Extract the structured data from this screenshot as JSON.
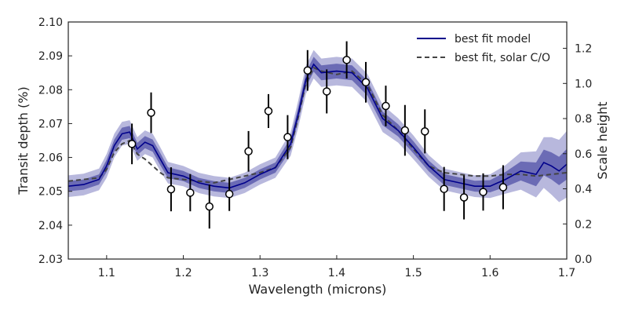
{
  "chart_data": {
    "type": "line",
    "xlabel": "Wavelength (microns)",
    "ylabel": "Transit depth (%)",
    "y2label": "Scale height",
    "xlim": [
      1.05,
      1.7
    ],
    "ylim": [
      2.03,
      2.1
    ],
    "y2lim": [
      0.0,
      1.35
    ],
    "xticks": [
      "1.1",
      "1.2",
      "1.3",
      "1.4",
      "1.5",
      "1.6",
      "1.7"
    ],
    "yticks": [
      "2.03",
      "2.04",
      "2.05",
      "2.06",
      "2.07",
      "2.08",
      "2.09",
      "2.10"
    ],
    "y2ticks": [
      "0.0",
      "0.2",
      "0.4",
      "0.6",
      "0.8",
      "1.0",
      "1.2"
    ],
    "legend_position": "top-right",
    "grid": false,
    "colors": {
      "best_fit": "#00008b",
      "solar": "#444444",
      "band_inner": "#6b6bb5",
      "band_outer": "#b8b8dd",
      "points_edge": "#000000",
      "points_face": "#ffffff"
    },
    "series": [
      {
        "name": "best fit model",
        "style": "solid",
        "x": [
          1.05,
          1.07,
          1.09,
          1.1,
          1.11,
          1.12,
          1.13,
          1.14,
          1.15,
          1.16,
          1.17,
          1.18,
          1.2,
          1.22,
          1.24,
          1.26,
          1.28,
          1.3,
          1.32,
          1.34,
          1.35,
          1.36,
          1.37,
          1.38,
          1.4,
          1.42,
          1.44,
          1.46,
          1.48,
          1.5,
          1.52,
          1.54,
          1.56,
          1.58,
          1.6,
          1.62,
          1.64,
          1.66,
          1.67,
          1.68,
          1.69,
          1.7
        ],
        "y": [
          2.0515,
          2.052,
          2.0535,
          2.0575,
          2.0635,
          2.067,
          2.0675,
          2.0625,
          2.0645,
          2.0635,
          2.0595,
          2.0555,
          2.0545,
          2.0525,
          2.0515,
          2.051,
          2.0525,
          2.055,
          2.057,
          2.064,
          2.073,
          2.083,
          2.0875,
          2.085,
          2.0855,
          2.085,
          2.0805,
          2.0715,
          2.068,
          2.063,
          2.0575,
          2.0535,
          2.0525,
          2.0515,
          2.0515,
          2.0535,
          2.056,
          2.055,
          2.0585,
          2.0575,
          2.056,
          2.058
        ]
      },
      {
        "name": "best fit, solar C/O",
        "style": "dashed",
        "x": [
          1.05,
          1.07,
          1.09,
          1.1,
          1.11,
          1.12,
          1.13,
          1.14,
          1.15,
          1.16,
          1.17,
          1.18,
          1.2,
          1.22,
          1.24,
          1.26,
          1.28,
          1.3,
          1.32,
          1.34,
          1.35,
          1.36,
          1.37,
          1.38,
          1.4,
          1.42,
          1.44,
          1.46,
          1.48,
          1.5,
          1.52,
          1.54,
          1.56,
          1.58,
          1.6,
          1.62,
          1.64,
          1.66,
          1.68,
          1.7
        ],
        "y": [
          2.053,
          2.0535,
          2.054,
          2.0565,
          2.0615,
          2.064,
          2.065,
          2.061,
          2.0595,
          2.0575,
          2.0555,
          2.054,
          2.0535,
          2.053,
          2.0525,
          2.0535,
          2.0545,
          2.0555,
          2.057,
          2.063,
          2.072,
          2.082,
          2.0865,
          2.0855,
          2.0845,
          2.0855,
          2.0815,
          2.0725,
          2.068,
          2.0625,
          2.0575,
          2.0555,
          2.055,
          2.0545,
          2.0545,
          2.055,
          2.055,
          2.0545,
          2.055,
          2.0555
        ]
      }
    ],
    "uncertainty_band": {
      "inner_halfwidth": [
        0.0015,
        0.0015,
        0.0015,
        0.0018,
        0.0018,
        0.0018,
        0.0018,
        0.0018,
        0.0018,
        0.0018,
        0.0018,
        0.0016,
        0.0015,
        0.0015,
        0.0015,
        0.0015,
        0.0015,
        0.0015,
        0.0015,
        0.0018,
        0.002,
        0.0022,
        0.0022,
        0.0022,
        0.0022,
        0.0022,
        0.0022,
        0.002,
        0.0018,
        0.0018,
        0.0016,
        0.0016,
        0.0016,
        0.0016,
        0.0018,
        0.0022,
        0.0028,
        0.0035,
        0.0038,
        0.004,
        0.0042,
        0.0045
      ],
      "outer_halfwidth": [
        0.0032,
        0.0032,
        0.0032,
        0.0035,
        0.0035,
        0.0035,
        0.0035,
        0.0035,
        0.0035,
        0.0035,
        0.0035,
        0.0032,
        0.003,
        0.003,
        0.003,
        0.003,
        0.003,
        0.003,
        0.003,
        0.0035,
        0.004,
        0.0042,
        0.0042,
        0.0042,
        0.0042,
        0.0042,
        0.0042,
        0.004,
        0.0036,
        0.0035,
        0.0032,
        0.0032,
        0.0032,
        0.0032,
        0.0035,
        0.0042,
        0.0055,
        0.0068,
        0.0075,
        0.0085,
        0.0092,
        0.0098
      ]
    },
    "data_points": {
      "x": [
        1.133,
        1.158,
        1.184,
        1.209,
        1.234,
        1.26,
        1.285,
        1.311,
        1.336,
        1.362,
        1.387,
        1.413,
        1.438,
        1.464,
        1.489,
        1.515,
        1.54,
        1.566,
        1.591,
        1.617
      ],
      "y": [
        2.064,
        2.0732,
        2.0506,
        2.0496,
        2.0455,
        2.0492,
        2.0618,
        2.0737,
        2.066,
        2.0857,
        2.0795,
        2.0888,
        2.0822,
        2.0752,
        2.068,
        2.0677,
        2.0507,
        2.0482,
        2.0498,
        2.0512
      ],
      "yerr": [
        0.006,
        0.006,
        0.0065,
        0.0055,
        0.0065,
        0.005,
        0.006,
        0.005,
        0.0065,
        0.006,
        0.0065,
        0.0055,
        0.006,
        0.006,
        0.0075,
        0.0065,
        0.0065,
        0.0065,
        0.0055,
        0.0065
      ]
    }
  }
}
